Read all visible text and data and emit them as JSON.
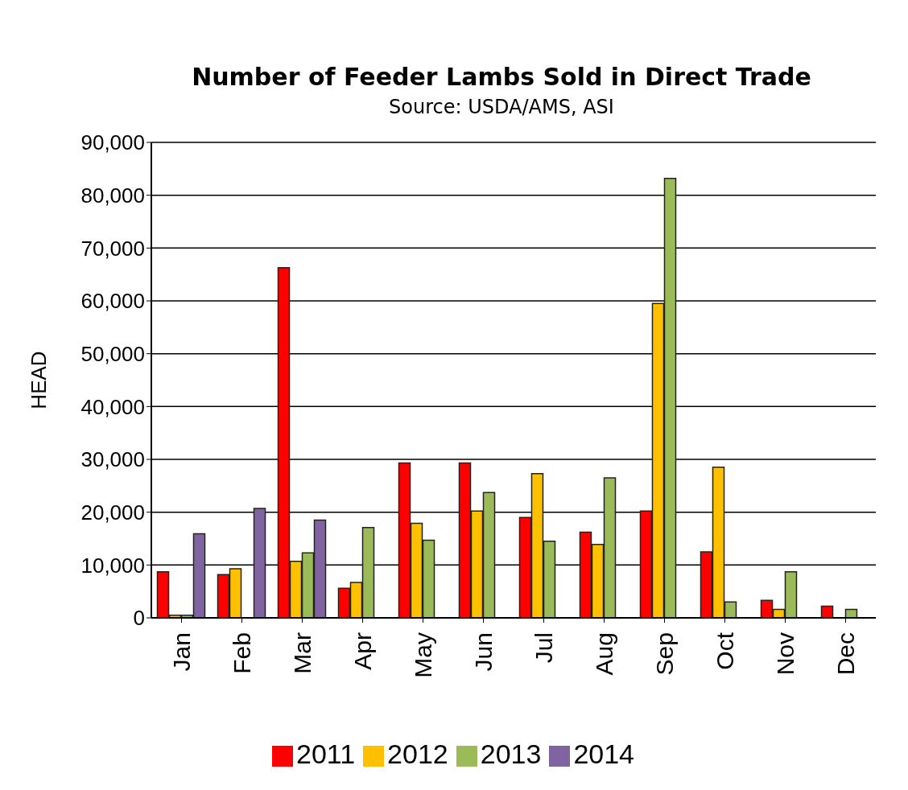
{
  "chart_data": {
    "type": "bar",
    "title": "Number of Feeder Lambs Sold in Direct Trade",
    "subtitle": "Source: USDA/AMS, ASI",
    "ylabel": "HEAD",
    "categories": [
      "Jan",
      "Feb",
      "Mar",
      "Apr",
      "May",
      "Jun",
      "Jul",
      "Aug",
      "Sep",
      "Oct",
      "Nov",
      "Dec"
    ],
    "series": [
      {
        "name": "2011",
        "color": "#ff0000",
        "values": [
          8700,
          8200,
          66300,
          5600,
          29300,
          29300,
          19000,
          16200,
          20200,
          12500,
          3300,
          2200
        ]
      },
      {
        "name": "2012",
        "color": "#ffc000",
        "values": [
          500,
          9300,
          10700,
          6700,
          17900,
          20200,
          27300,
          13900,
          59500,
          28500,
          1600,
          null
        ]
      },
      {
        "name": "2013",
        "color": "#9bbb59",
        "values": [
          500,
          null,
          12300,
          17100,
          14700,
          23700,
          14500,
          26500,
          83200,
          3000,
          8700,
          1600
        ]
      },
      {
        "name": "2014",
        "color": "#8064a2",
        "values": [
          15900,
          20700,
          18500,
          null,
          null,
          null,
          null,
          null,
          null,
          null,
          null,
          null
        ]
      }
    ],
    "ylim": [
      0,
      90000
    ],
    "yticks": [
      0,
      {
        "value": 10000,
        "label": "10,000"
      },
      {
        "value": 20000,
        "label": "20,000"
      },
      {
        "value": 30000,
        "label": "30,000"
      },
      {
        "value": 40000,
        "label": "40,000"
      },
      {
        "value": 50000,
        "label": "50,000"
      },
      {
        "value": 60000,
        "label": "60,000"
      },
      {
        "value": 70000,
        "label": "70,000"
      },
      {
        "value": 80000,
        "label": "80,000"
      },
      {
        "value": 90000,
        "label": "90,000"
      }
    ],
    "grid": "y",
    "legend": "bottom"
  }
}
